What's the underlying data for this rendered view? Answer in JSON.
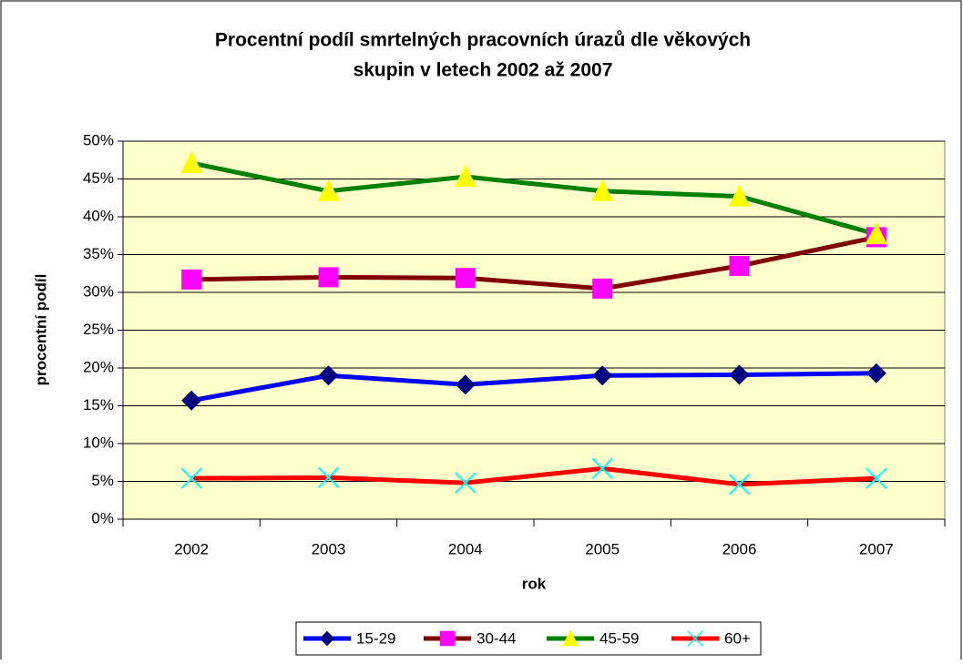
{
  "chart_data": {
    "type": "line",
    "title": [
      "Procentní podíl smrtelných pracovních úrazů dle věkových",
      "skupin v letech 2002 až 2007"
    ],
    "x_label": "rok",
    "y_label": "procentní podíl",
    "categories": [
      "2002",
      "2003",
      "2004",
      "2005",
      "2006",
      "2007"
    ],
    "series": [
      {
        "name": "15-29",
        "color": "#0000ff",
        "marker": "diamond",
        "marker_color": "#000080",
        "values": [
          15.7,
          19.0,
          17.8,
          19.0,
          19.1,
          19.3
        ]
      },
      {
        "name": "30-44",
        "color": "#800000",
        "marker": "square",
        "marker_color": "#ff00ff",
        "values": [
          31.7,
          32.0,
          31.9,
          30.5,
          33.5,
          37.3
        ]
      },
      {
        "name": "45-59",
        "color": "#008000",
        "marker": "triangle",
        "marker_color": "#ffff00",
        "values": [
          47.1,
          43.4,
          45.3,
          43.4,
          42.7,
          37.7
        ]
      },
      {
        "name": "60+",
        "color": "#ff0000",
        "marker": "x",
        "marker_color": "#00ffff",
        "values": [
          5.4,
          5.5,
          4.8,
          6.7,
          4.6,
          5.4
        ]
      }
    ],
    "ylim": [
      0,
      50
    ],
    "yticks": [
      {
        "value": 0,
        "label": "0%"
      },
      {
        "value": 5,
        "label": "5%"
      },
      {
        "value": 10,
        "label": "10%"
      },
      {
        "value": 15,
        "label": "15%"
      },
      {
        "value": 20,
        "label": "20%"
      },
      {
        "value": 25,
        "label": "25%"
      },
      {
        "value": 30,
        "label": "30%"
      },
      {
        "value": 35,
        "label": "35%"
      },
      {
        "value": 40,
        "label": "40%"
      },
      {
        "value": 45,
        "label": "45%"
      },
      {
        "value": 50,
        "label": "50%"
      }
    ],
    "grid": true,
    "legend": "bottom",
    "plot_background": "#ffffcc"
  }
}
